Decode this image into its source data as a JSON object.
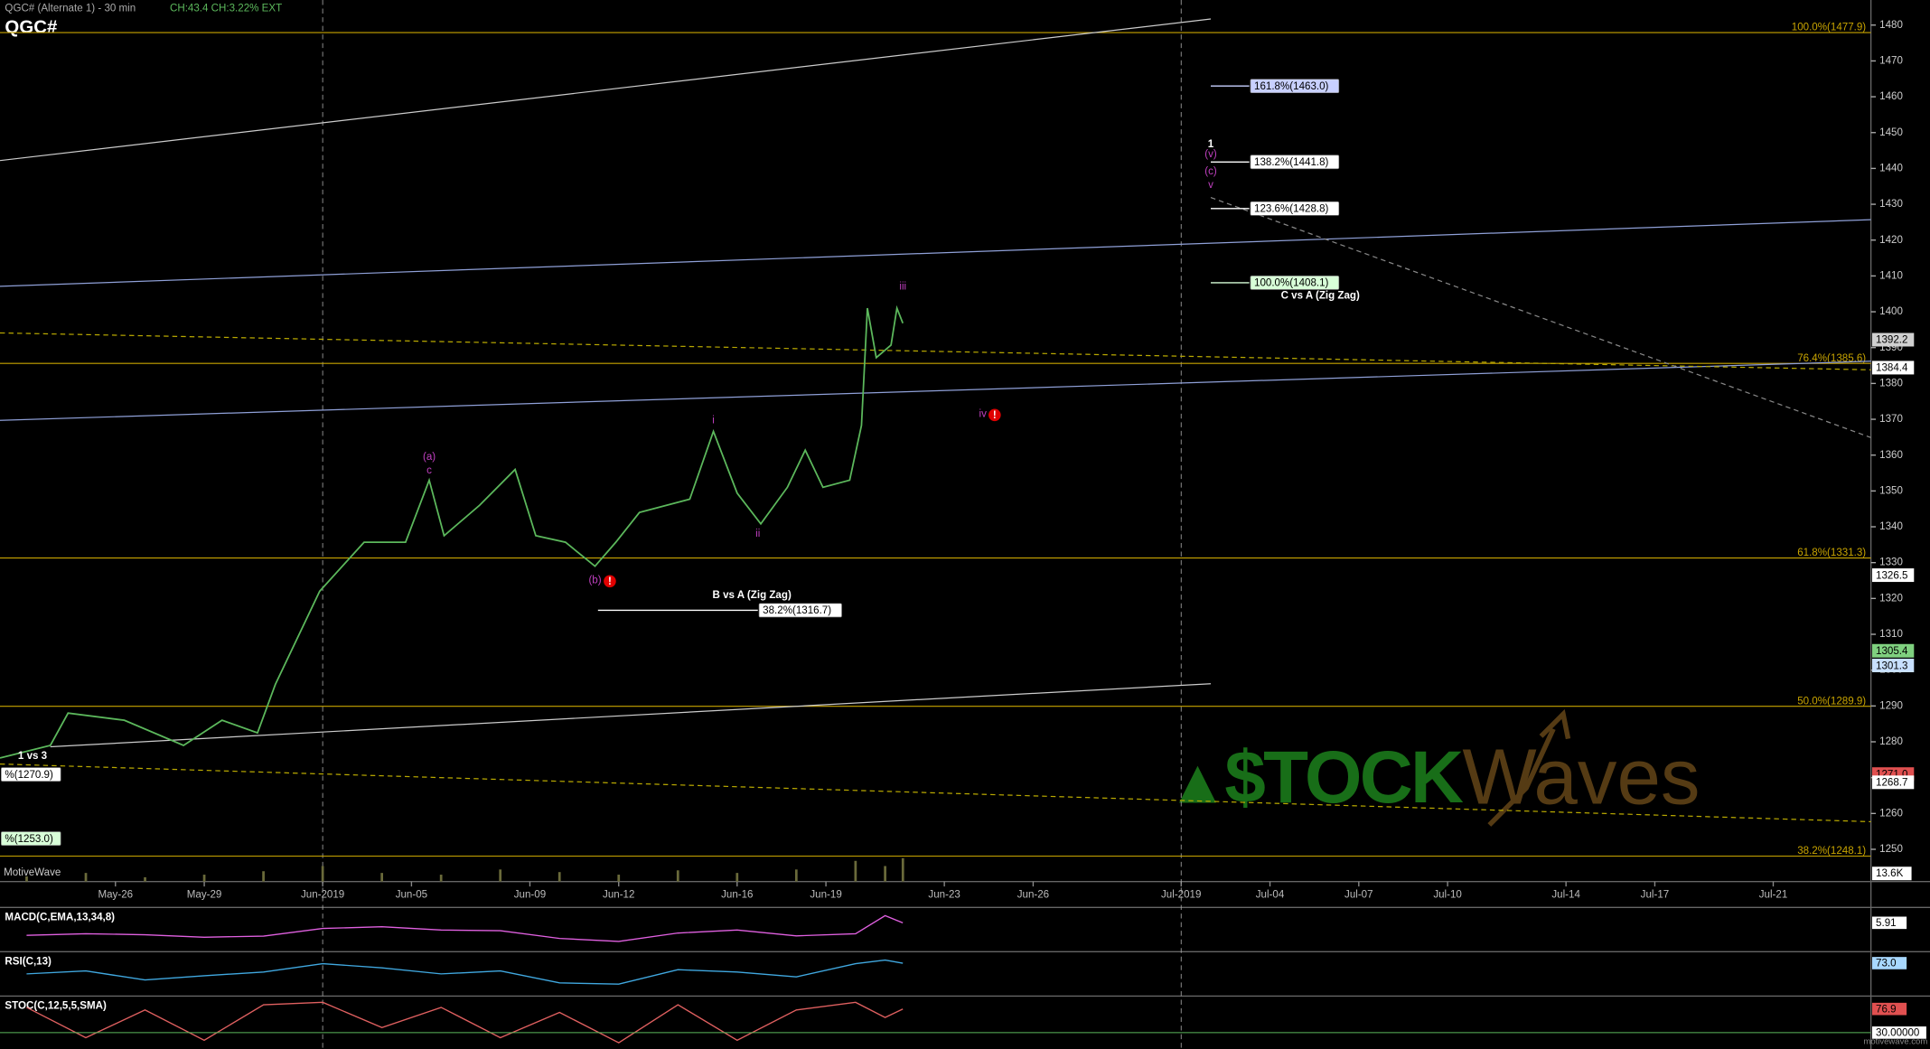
{
  "chart_data": {
    "type": "line",
    "title": "QGC# (Alternate 1) - 30 min",
    "change_label": "CH:43.4 CH:3.22% EXT",
    "x": [
      142.1,
      143.8,
      144.4,
      146.3,
      148.3,
      149.6,
      150.8,
      151.4,
      152.9,
      154.4,
      155.8,
      156.6,
      157.1,
      158.3,
      159.5,
      160.2,
      161.2,
      162.2,
      162.9,
      163.7,
      165.4,
      166.2,
      167.0,
      167.8,
      168.7,
      169.3,
      169.9,
      170.8,
      171.2,
      171.4,
      171.7,
      172.2,
      172.4,
      172.6
    ],
    "series": [
      {
        "name": "QGC#",
        "color": "#5cb85c",
        "values": [
          1275.5,
          1279,
          1288,
          1286,
          1279,
          1286,
          1282.5,
          1296,
          1322,
          1335.7,
          1335.7,
          1353,
          1337.5,
          1346,
          1356,
          1337.5,
          1335.7,
          1329,
          1335.7,
          1344,
          1347.7,
          1366.6,
          1349.4,
          1340.8,
          1351,
          1361.4,
          1351,
          1353,
          1368.3,
          1401,
          1387.2,
          1390.7,
          1401,
          1396.8
        ]
      }
    ],
    "xlim": [
      142.1,
      205.3
    ],
    "xticks": [
      {
        "value": 146,
        "label": "May-26"
      },
      {
        "value": 149,
        "label": "May-29"
      },
      {
        "value": 153,
        "label": "Jun-2019"
      },
      {
        "value": 156,
        "label": "Jun-05"
      },
      {
        "value": 160,
        "label": "Jun-09"
      },
      {
        "value": 163,
        "label": "Jun-12"
      },
      {
        "value": 167,
        "label": "Jun-16"
      },
      {
        "value": 170,
        "label": "Jun-19"
      },
      {
        "value": 174,
        "label": "Jun-23"
      },
      {
        "value": 177,
        "label": "Jun-26"
      },
      {
        "value": 182,
        "label": "Jul-2019"
      },
      {
        "value": 185,
        "label": "Jul-04"
      },
      {
        "value": 188,
        "label": "Jul-07"
      },
      {
        "value": 191,
        "label": "Jul-10"
      },
      {
        "value": 195,
        "label": "Jul-14"
      },
      {
        "value": 198,
        "label": "Jul-17"
      },
      {
        "value": 202,
        "label": "Jul-21"
      }
    ],
    "ylim": [
      1241,
      1487
    ],
    "yticks": [
      1250,
      1260,
      1270,
      1280,
      1290,
      1300,
      1310,
      1320,
      1330,
      1340,
      1350,
      1360,
      1370,
      1380,
      1390,
      1400,
      1410,
      1420,
      1430,
      1440,
      1450,
      1460,
      1470,
      1480
    ],
    "levels": [
      {
        "label": "100.0%(1477.9)",
        "value": 1477.9,
        "color": "#c8a400"
      },
      {
        "label": "76.4%(1385.6)",
        "value": 1385.6,
        "color": "#c8a400"
      },
      {
        "label": "61.8%(1331.3)",
        "value": 1331.3,
        "color": "#c8a400"
      },
      {
        "label": "50.0%(1289.9)",
        "value": 1289.9,
        "color": "#c8a400"
      },
      {
        "label": "38.2%(1248.1)",
        "value": 1248.1,
        "color": "#c8a400"
      }
    ],
    "projections": [
      {
        "label": "161.8%(1463.0)",
        "value": 1463.0,
        "x": [
          183.0,
          184.3
        ],
        "color": "#c8d0ff"
      },
      {
        "label": "138.2%(1441.8)",
        "value": 1441.8,
        "x": [
          183.0,
          184.3
        ],
        "color": "#ffffff"
      },
      {
        "label": "123.6%(1428.8)",
        "value": 1428.8,
        "x": [
          183.0,
          184.3
        ],
        "color": "#ffffff"
      },
      {
        "label": "100.0%(1408.1)",
        "value": 1408.1,
        "x": [
          183.0,
          184.3
        ],
        "color": "#d8ffd8"
      },
      {
        "label": "38.2%(1316.7)",
        "value": 1316.7,
        "x": [
          162.3,
          167.7
        ],
        "color": "#ffffff"
      },
      {
        "label": "%(1270.9)",
        "value": 1270.9,
        "x": [
          142.1,
          142.1
        ],
        "color": "#ffffff"
      },
      {
        "label": "%(1253.0)",
        "value": 1253.0,
        "x": [
          142.1,
          142.1
        ],
        "color": "#d8ffd8"
      }
    ],
    "trendlines": [
      {
        "x": [
          142.1,
          183.0
        ],
        "y": [
          1442.2,
          1481.7
        ],
        "color": "#cccccc",
        "dash": false
      },
      {
        "x": [
          143.8,
          183.0
        ],
        "y": [
          1278.6,
          1296.2
        ],
        "color": "#cccccc",
        "dash": false
      },
      {
        "x": [
          142.1,
          205.3
        ],
        "y": [
          1407.1,
          1425.7
        ],
        "color": "#8fa0d8",
        "dash": false
      },
      {
        "x": [
          142.1,
          205.3
        ],
        "y": [
          1369.7,
          1386.2
        ],
        "color": "#8fa0d8",
        "dash": false
      },
      {
        "x": [
          142.1,
          205.3
        ],
        "y": [
          1394.1,
          1383.8
        ],
        "color": "#b8a800",
        "dash": true
      },
      {
        "x": [
          142.1,
          205.3
        ],
        "y": [
          1273.8,
          1257.7
        ],
        "color": "#b8a800",
        "dash": true
      },
      {
        "x": [
          183.0,
          205.3
        ],
        "y": [
          1431.9,
          1364.9
        ],
        "color": "#888888",
        "dash": true
      }
    ],
    "annotations": [
      {
        "text": "(a)",
        "x": 156.6,
        "y": 1359.4,
        "color": "#c040c0"
      },
      {
        "text": "c",
        "x": 156.6,
        "y": 1355.6,
        "color": "#c040c0"
      },
      {
        "text": "i",
        "x": 166.2,
        "y": 1369.7,
        "color": "#c040c0"
      },
      {
        "text": "ii",
        "x": 167.7,
        "y": 1338.0,
        "color": "#c040c0"
      },
      {
        "text": "(b)",
        "x": 162.2,
        "y": 1325.0,
        "color": "#c040c0"
      },
      {
        "text": "iii",
        "x": 172.6,
        "y": 1407.0,
        "color": "#c040c0"
      },
      {
        "text": "iv",
        "x": 175.3,
        "y": 1371.4,
        "color": "#c040c0"
      },
      {
        "text": "1",
        "x": 183.0,
        "y": 1446.7,
        "color": "#ffffff"
      },
      {
        "text": "(v)",
        "x": 183.0,
        "y": 1443.9,
        "color": "#c040c0"
      },
      {
        "text": "(c)",
        "x": 183.0,
        "y": 1439.1,
        "color": "#c040c0"
      },
      {
        "text": "v",
        "x": 183.0,
        "y": 1435.3,
        "color": "#c040c0"
      },
      {
        "text": "C vs A (Zig Zag)",
        "x": 186.7,
        "y": 1404.5,
        "color": "#ffffff"
      },
      {
        "text": "B vs A (Zig Zag)",
        "x": 167.5,
        "y": 1320.8,
        "color": "#ffffff"
      },
      {
        "text": "1 vs 3",
        "x": 143.2,
        "y": 1276.0,
        "color": "#ffffff"
      }
    ],
    "alerts": [
      {
        "text": "!",
        "x": 162.7,
        "y": 1324.8,
        "color": "#e00000"
      },
      {
        "text": "!",
        "x": 175.7,
        "y": 1371.2,
        "color": "#e00000"
      }
    ],
    "axis_tags": [
      {
        "value": 1392.2,
        "label": "1392.2",
        "color": "#d0d0d0"
      },
      {
        "value": 1384.4,
        "label": "1384.4",
        "color": "#ffffff"
      },
      {
        "value": 1326.5,
        "label": "1326.5",
        "color": "#ffffff"
      },
      {
        "value": 1305.4,
        "label": "1305.4",
        "color": "#7fd07f"
      },
      {
        "value": 1301.3,
        "label": "1301.3",
        "color": "#c8e0ff"
      },
      {
        "value": 1271.0,
        "label": "1271.0",
        "color": "#e05050"
      },
      {
        "value": 1268.7,
        "label": "1268.7",
        "color": "#ffffff"
      }
    ],
    "volume": {
      "x": [
        143,
        145,
        147,
        149,
        151,
        153,
        155,
        157,
        159,
        161,
        163,
        165,
        167,
        169,
        171,
        172,
        172.6
      ],
      "values": [
        3000,
        5000,
        2500,
        4000,
        6000,
        9000,
        5000,
        4000,
        7000,
        5500,
        4000,
        6500,
        5000,
        7000,
        12000,
        9000,
        13600
      ],
      "color": "#6a6a3a",
      "ylim": [
        0,
        20000
      ],
      "tag": {
        "value": 13600,
        "label": "13.6K"
      }
    },
    "indicators": [
      {
        "label": "MACD(C,EMA,13,34,8)",
        "color": "#e060e0",
        "x": [
          143,
          145,
          147,
          149,
          151,
          153,
          155,
          157,
          159,
          161,
          163,
          165,
          167,
          169,
          171,
          172,
          172.6
        ],
        "values": [
          0.5,
          1.2,
          0.8,
          -0.3,
          0.2,
          3.5,
          4.2,
          2.8,
          2.5,
          -0.8,
          -2.1,
          1.5,
          2.8,
          0.3,
          1.2,
          9.0,
          5.91
        ],
        "ylim": [
          -6,
          12
        ],
        "tag": {
          "value": 5.91,
          "label": "5.91",
          "color": "#ffffff"
        }
      },
      {
        "label": "RSI(C,13)",
        "color": "#40a8e0",
        "x": [
          143,
          145,
          147,
          149,
          151,
          153,
          155,
          157,
          159,
          161,
          163,
          165,
          167,
          169,
          171,
          172,
          172.6
        ],
        "values": [
          55,
          60,
          45,
          52,
          58,
          72,
          65,
          55,
          60,
          40,
          38,
          62,
          58,
          50,
          72,
          78,
          73.0
        ],
        "ylim": [
          20,
          90
        ],
        "tag": {
          "value": 73.0,
          "label": "73.0",
          "color": "#a8d8ff"
        }
      },
      {
        "label": "STOC(C,12,5,5,SMA)",
        "color": "#e06060",
        "x": [
          143,
          145,
          147,
          149,
          151,
          153,
          155,
          157,
          159,
          161,
          163,
          165,
          167,
          169,
          171,
          172,
          172.6
        ],
        "values": [
          80,
          20,
          75,
          15,
          85,
          90,
          40,
          80,
          20,
          70,
          10,
          85,
          15,
          75,
          90,
          60,
          76.9
        ],
        "ylim": [
          0,
          100
        ],
        "tag": {
          "value": 76.9,
          "label": "76.9",
          "color": "#e05050"
        },
        "level": {
          "value": 30,
          "label": "30.00000",
          "color": "#5cb85c"
        }
      }
    ]
  },
  "platform": "MotiveWave",
  "footer": "motivewave.com",
  "logo": {
    "left": "$TOCK",
    "right": "Waves"
  }
}
